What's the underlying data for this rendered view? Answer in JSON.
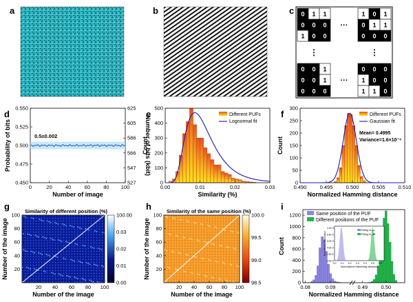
{
  "panel_labels": [
    "a",
    "b",
    "c",
    "d",
    "e",
    "f",
    "g",
    "h",
    "i"
  ],
  "colors": {
    "cyan_texture": "#2fb8c4",
    "line_blue": "#1f3fb4",
    "bar_dark_orange": "#e8531c",
    "bar_mid": "#f5a623",
    "bar_yellow": "#ffe21a",
    "fit_blue": "#1a1aa8",
    "right_axis_red": "#e23b3b",
    "hist_purple": "#8b86e0",
    "hist_green": "#22b54a"
  },
  "panel_c": {
    "top_left": [
      [
        "0",
        "1",
        "1"
      ],
      [
        "0",
        "0",
        "0"
      ],
      [
        "1",
        "0",
        "0"
      ]
    ],
    "top_right": [
      [
        "1",
        "0",
        "1"
      ],
      [
        "0",
        "1",
        "1"
      ],
      [
        "0",
        "0",
        "0"
      ]
    ],
    "bottom_left": [
      [
        "0",
        "0",
        "1"
      ],
      [
        "0",
        "0",
        "1"
      ],
      [
        "0",
        "0",
        "0"
      ]
    ],
    "bottom_right": [
      [
        "0",
        "0",
        "0"
      ],
      [
        "1",
        "0",
        "0"
      ],
      [
        "1",
        "1",
        "0"
      ]
    ],
    "ellipsis_h": "···",
    "ellipsis_v": "⋮"
  },
  "chart_data": [
    {
      "panel": "d",
      "type": "line",
      "xlabel": "Number of image",
      "ylabel": "Probability of bits",
      "y2label": "Number of bits (kbit)",
      "xlim": [
        0,
        100
      ],
      "ylim": [
        0.45,
        0.55
      ],
      "y2lim": [
        527,
        625
      ],
      "x_ticks": [
        "0",
        "20",
        "40",
        "60",
        "80",
        "100"
      ],
      "y_ticks": [
        "0.450",
        "0.475",
        "0.500",
        "0.525",
        "0.550"
      ],
      "y2_ticks": [
        "527",
        "547",
        "566",
        "586",
        "605",
        "625"
      ],
      "annotation": "0.5±0.002",
      "series": [
        {
          "mean": 0.5,
          "band": 0.002,
          "n_points": 100
        }
      ]
    },
    {
      "panel": "e",
      "type": "bar",
      "xlabel": "Similarity (%)",
      "ylabel": "Count",
      "xlim": [
        0,
        0.03
      ],
      "ylim": [
        0,
        500
      ],
      "x_ticks": [
        "0.00",
        "0.01",
        "0.02",
        "0.03"
      ],
      "y_ticks": [
        "0",
        "100",
        "200",
        "300",
        "400",
        "500"
      ],
      "bin_edges": [
        0.001,
        0.002,
        0.003,
        0.004,
        0.005,
        0.006,
        0.007,
        0.008,
        0.009,
        0.01,
        0.011,
        0.012,
        0.013,
        0.014,
        0.015,
        0.016,
        0.017,
        0.018,
        0.019,
        0.02,
        0.021,
        0.022,
        0.023,
        0.024,
        0.025,
        0.026
      ],
      "counts": [
        10,
        25,
        75,
        185,
        330,
        410,
        500,
        390,
        300,
        300,
        235,
        195,
        155,
        120,
        120,
        75,
        65,
        55,
        30,
        25,
        20,
        10,
        8,
        5,
        3
      ],
      "legend": [
        "Different PUFs",
        "Lognormal fit"
      ],
      "fit": {
        "type": "lognormal",
        "mode": 0.0085,
        "peak": 470
      }
    },
    {
      "panel": "f",
      "type": "bar",
      "xlabel": "Normalized Hamming distance",
      "ylabel": "Count",
      "xlim": [
        0.49,
        0.51
      ],
      "ylim": [
        0,
        300
      ],
      "x_ticks": [
        "0.490",
        "0.495",
        "0.500",
        "0.505",
        "0.510"
      ],
      "y_ticks": [
        "0",
        "50",
        "100",
        "150",
        "200",
        "250",
        "300"
      ],
      "bin_edges": [
        0.4965,
        0.497,
        0.4975,
        0.498,
        0.4985,
        0.499,
        0.4995,
        0.5,
        0.5005,
        0.501,
        0.5015,
        0.502,
        0.5025
      ],
      "counts": [
        5,
        20,
        60,
        150,
        230,
        280,
        275,
        230,
        150,
        70,
        25,
        8
      ],
      "legend": [
        "Different PUFs",
        "Gaussian fit"
      ],
      "mean_label": "Mean= 0.4995",
      "variance_label": "Variance=1.6×10⁻⁶",
      "fit": {
        "type": "gaussian",
        "mean": 0.4995,
        "sigma": 0.00126,
        "peak": 280
      }
    },
    {
      "panel": "g",
      "type": "heatmap",
      "title": "Similarity of different position (%)",
      "xlabel": "Number of the image",
      "ylabel": "Number of the image",
      "x_ticks": [
        "20",
        "40",
        "60",
        "80",
        "100"
      ],
      "y_ticks": [
        "20",
        "40",
        "60",
        "80",
        "100"
      ],
      "colorbar_ticks": [
        "100.00",
        "0.03",
        "0.02",
        "0.01",
        "0.00"
      ]
    },
    {
      "panel": "h",
      "type": "heatmap",
      "title": "Similarity of the same position (%)",
      "xlabel": "Number of the image",
      "ylabel": "Number of the image",
      "x_ticks": [
        "20",
        "40",
        "60",
        "80",
        "100"
      ],
      "y_ticks": [
        "20",
        "40",
        "60",
        "80",
        "100"
      ],
      "colorbar_ticks": [
        "100.0",
        "99.5",
        "99.0",
        "98.5"
      ]
    },
    {
      "panel": "i",
      "type": "bar",
      "xlabel": "Normalized Hamming distance",
      "ylabel": "Count",
      "ylim": [
        0,
        1300
      ],
      "y_ticks": [
        "0",
        "200",
        "400",
        "600",
        "800",
        "1000",
        "1200"
      ],
      "x_ticks": [
        "0.08",
        "0.09",
        "0.49",
        "0.50"
      ],
      "legend": [
        "Same position of the PUF",
        "Different positions of the PUF"
      ],
      "series": [
        {
          "name": "Same position of the PUF",
          "x": [
            0.0825,
            0.0833,
            0.0842,
            0.085,
            0.0858,
            0.0867,
            0.0875,
            0.0883,
            0.0892,
            0.09,
            0.0908,
            0.0917,
            0.0925,
            0.0933,
            0.0942
          ],
          "values": [
            20,
            50,
            130,
            300,
            620,
            820,
            760,
            560,
            330,
            160,
            70,
            30,
            15,
            8,
            5
          ]
        },
        {
          "name": "Different positions of the PUF",
          "x": [
            0.4925,
            0.4933,
            0.4942,
            0.495,
            0.4958,
            0.4967,
            0.4975,
            0.4983,
            0.4992,
            0.5,
            0.5008,
            0.5017,
            0.5025,
            0.5033,
            0.5042
          ],
          "values": [
            5,
            10,
            25,
            60,
            140,
            300,
            560,
            900,
            1150,
            1280,
            1050,
            720,
            380,
            150,
            40
          ]
        }
      ],
      "inset": {
        "xlabel": "Normalized Hamming distance",
        "ylabel": "Normalized distribution",
        "x_ticks": [
          "0.0",
          "0.1",
          "0.2",
          "0.3",
          "0.4",
          "0.5",
          "0.6"
        ],
        "y_ticks": [
          "0.0E+0",
          "2.0E+2",
          "4.0E+2",
          "6.0E+2",
          "8.0E+2",
          "1.0E+3"
        ],
        "legend": [
          "Fitting Nₛₐₘₑ",
          "Fitting N_diff"
        ]
      }
    }
  ]
}
